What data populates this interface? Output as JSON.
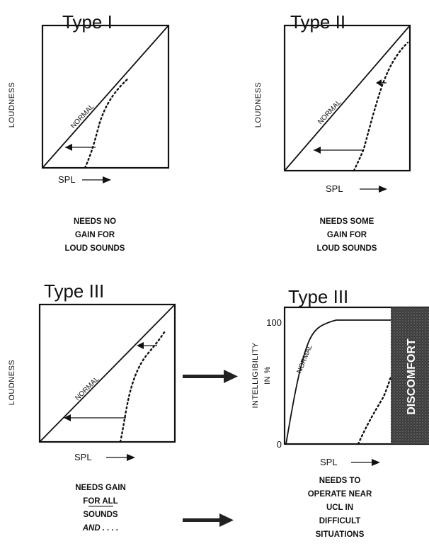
{
  "panels": [
    {
      "title": "Type I",
      "ylabel": "LOUDNESS",
      "xlabel": "SPL",
      "normal_label": "NORMAL",
      "caption": [
        "NEEDS NO",
        "GAIN FOR",
        "LOUD SOUNDS"
      ]
    },
    {
      "title": "Type II",
      "ylabel": "LOUDNESS",
      "xlabel": "SPL",
      "normal_label": "NORMAL",
      "caption": [
        "NEEDS  SOME",
        "GAIN FOR",
        "LOUD SOUNDS"
      ]
    },
    {
      "title": "Type III",
      "ylabel": "LOUDNESS",
      "xlabel": "SPL",
      "normal_label": "NORMAL",
      "caption": [
        "NEEDS GAIN",
        "FOR ALL",
        "SOUNDS",
        "AND . . . ."
      ]
    },
    {
      "title": "Type III",
      "ylabel_lines": [
        "INTELLIGIBILITY",
        "IN %"
      ],
      "xlabel": "SPL",
      "normal_label": "NORMAL",
      "tick_top": "100",
      "tick_bottom": "0",
      "band_label": "DISCOMFORT",
      "band_color": "#3a3a3a",
      "caption": [
        "NEEDS  TO",
        "OPERATE NEAR",
        "UCL  IN",
        "DIFFICULT",
        "SITUATIONS"
      ]
    }
  ]
}
